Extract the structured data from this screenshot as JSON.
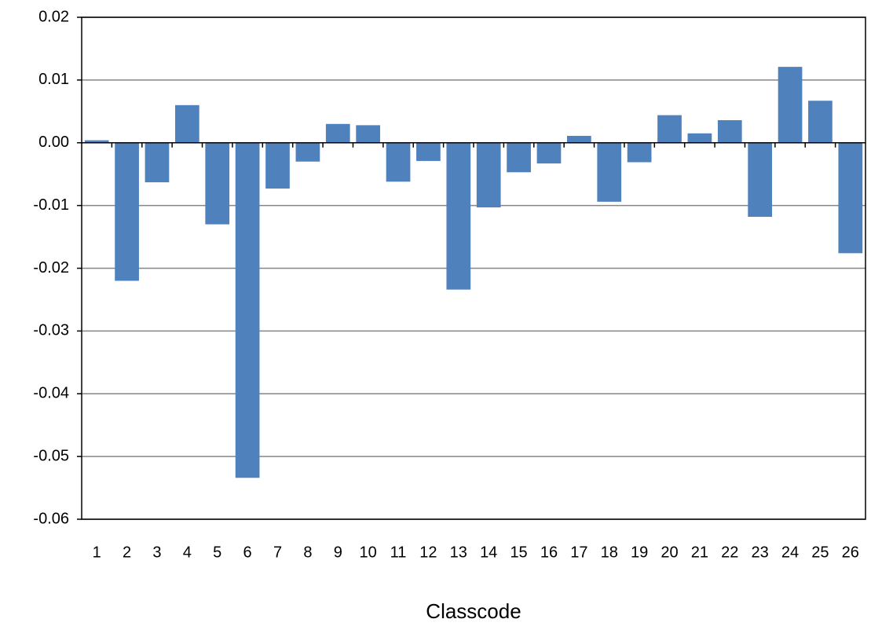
{
  "chart_data": {
    "type": "bar",
    "x_label": "Classcode",
    "categories": [
      "1",
      "2",
      "3",
      "4",
      "5",
      "6",
      "7",
      "8",
      "9",
      "10",
      "11",
      "12",
      "13",
      "14",
      "15",
      "16",
      "17",
      "18",
      "19",
      "20",
      "21",
      "22",
      "23",
      "24",
      "25",
      "26"
    ],
    "values": [
      0.0004,
      -0.022,
      -0.0063,
      0.006,
      -0.013,
      -0.0534,
      -0.0073,
      -0.003,
      0.003,
      0.0028,
      -0.0062,
      -0.0029,
      -0.0234,
      -0.0103,
      -0.0047,
      -0.0033,
      0.0011,
      -0.0094,
      -0.0031,
      0.0044,
      0.0015,
      0.0036,
      -0.0118,
      0.0121,
      0.0067,
      -0.0176
    ],
    "color": "#4f81bd",
    "ylim": [
      -0.06,
      0.02
    ],
    "yticks": [
      -0.06,
      -0.05,
      -0.04,
      -0.03,
      -0.02,
      -0.01,
      {
        "value": 0,
        "label": "0.00"
      },
      0.01,
      0.02
    ],
    "grid": true
  }
}
